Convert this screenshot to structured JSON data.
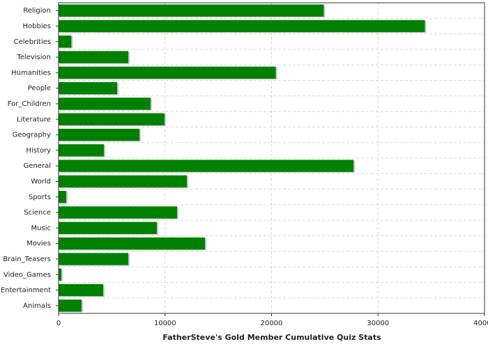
{
  "chart_data": {
    "type": "barh",
    "xlabel": "FatherSteve's Gold Member Cumulative Quiz Stats",
    "categories": [
      "Religion",
      "Hobbies",
      "Celebrities",
      "Television",
      "Humanities",
      "People",
      "For_Children",
      "Literature",
      "Geography",
      "History",
      "General",
      "World",
      "Sports",
      "Science",
      "Music",
      "Movies",
      "Brain_Teasers",
      "Video_Games",
      "Entertainment",
      "Animals"
    ],
    "values": [
      24900,
      34400,
      1200,
      6550,
      20400,
      5500,
      8640,
      9950,
      7600,
      4260,
      27700,
      12050,
      720,
      11130,
      9230,
      13750,
      6550,
      260,
      4190,
      2160
    ],
    "color": "#008000",
    "xlim": [
      0,
      40000
    ],
    "xticks": [
      0,
      10000,
      20000,
      30000,
      40000
    ],
    "grid": true
  }
}
